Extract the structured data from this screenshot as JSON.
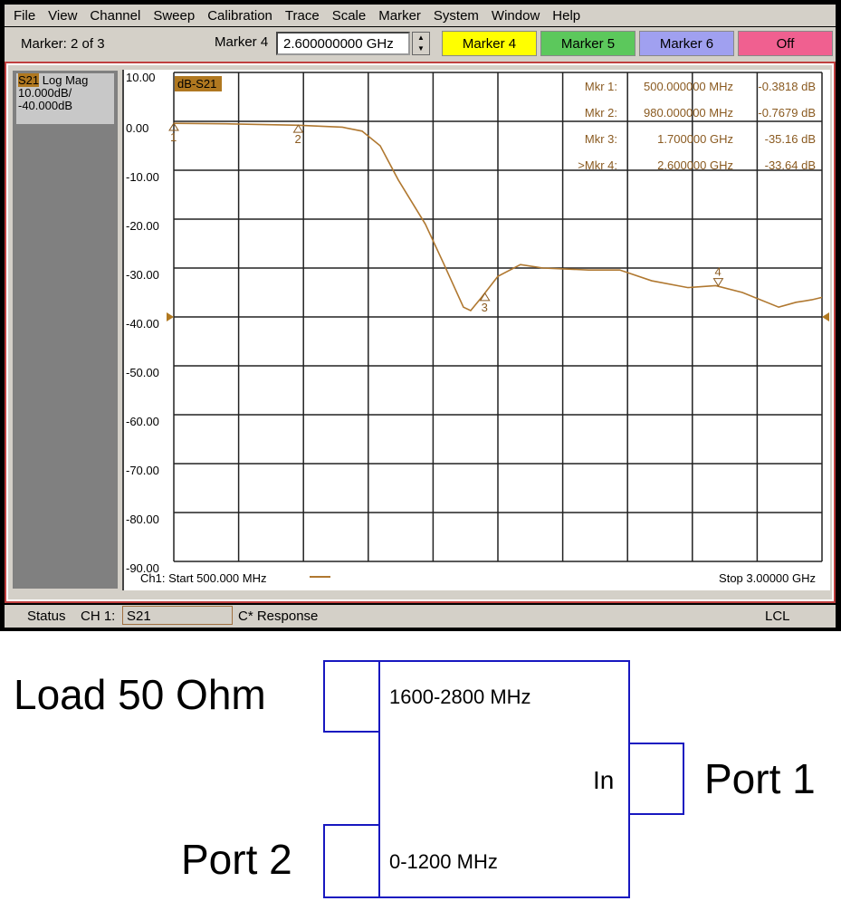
{
  "menu": [
    "File",
    "View",
    "Channel",
    "Sweep",
    "Calibration",
    "Trace",
    "Scale",
    "Marker",
    "System",
    "Window",
    "Help"
  ],
  "toolbar": {
    "marker_count": "Marker: 2 of 3",
    "marker_field_label": "Marker 4",
    "marker_value": "2.600000000 GHz",
    "buttons": [
      {
        "label": "Marker 4",
        "color": "#ffff00"
      },
      {
        "label": "Marker 5",
        "color": "#5cc85c"
      },
      {
        "label": "Marker 6",
        "color": "#a0a0f0"
      },
      {
        "label": "Off",
        "color": "#f06090"
      }
    ]
  },
  "trace_info": {
    "param": "S21",
    "format": "Log Mag",
    "scale": "10.000dB/",
    "ref": "-40.000dB",
    "trace_tag": "dB-S21"
  },
  "status": {
    "label": "Status",
    "channel": "CH 1:",
    "param": "S21",
    "response": "C* Response",
    "lcl": "LCL"
  },
  "chart_data": {
    "type": "line",
    "trace_color": "#b07830",
    "xlabel_start": "Ch1: Start  500.000 MHz",
    "xlabel_stop": "Stop  3.00000 GHz",
    "xlim_mhz": [
      500,
      3000
    ],
    "ylim": [
      -90,
      10
    ],
    "yticks": [
      "10.00",
      "0.00",
      "-10.00",
      "-20.00",
      "-30.00",
      "-40.00",
      "-50.00",
      "-60.00",
      "-70.00",
      "-80.00",
      "-90.00"
    ],
    "grid": true,
    "reference_level": -40,
    "series": [
      {
        "x": [
          500,
          700,
          980,
          1150,
          1226,
          1296,
          1366,
          1470,
          1540,
          1617,
          1645,
          1687,
          1750,
          1837,
          1924,
          2100,
          2220,
          2343,
          2483,
          2590,
          2693,
          2833,
          2900,
          2960,
          3000
        ],
        "y": [
          -0.4,
          -0.5,
          -0.8,
          -1.2,
          -2,
          -5,
          -12,
          -21,
          -29,
          -38,
          -38.7,
          -36,
          -31.7,
          -29.3,
          -30,
          -30.4,
          -30.4,
          -32.6,
          -34,
          -33.6,
          -35,
          -38,
          -37,
          -36.5,
          -36
        ]
      }
    ],
    "markers": [
      {
        "id": "1",
        "label": "Mkr 1:",
        "freq": "500.000000 MHz",
        "value": "-0.3818 dB",
        "x": 500,
        "y": -0.3818
      },
      {
        "id": "2",
        "label": "Mkr 2:",
        "freq": "980.000000 MHz",
        "value": "-0.7679 dB",
        "x": 980,
        "y": -0.7679
      },
      {
        "id": "3",
        "label": "Mkr 3:",
        "freq": "1.700000 GHz",
        "value": "-35.16 dB",
        "x": 1700,
        "y": -35.16
      },
      {
        "id": "4",
        "label": ">Mkr 4:",
        "freq": "2.600000 GHz",
        "value": "-33.64 dB",
        "x": 2600,
        "y": -33.64
      }
    ]
  },
  "diagram": {
    "load": "Load 50 Ohm",
    "port2": "Port 2",
    "port1": "Port 1",
    "band_high": "1600-2800 MHz",
    "band_low": "0-1200 MHz",
    "in": "In"
  }
}
